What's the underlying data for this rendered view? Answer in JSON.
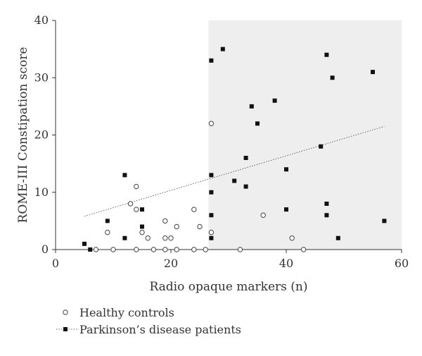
{
  "chart_data": {
    "type": "scatter",
    "title": "",
    "xlabel": "Radio opaque markers (n)",
    "ylabel": "ROME-III Constipation score",
    "xlim": [
      0,
      60
    ],
    "ylim": [
      0,
      40
    ],
    "x_ticks": [
      "0",
      "20",
      "40",
      "60"
    ],
    "y_ticks": [
      "0",
      "10",
      "20",
      "30",
      "40"
    ],
    "grid": false,
    "shaded_region": {
      "x_from": 26.5,
      "x_to": 60,
      "color": "#eeeeee"
    },
    "legend_position": "bottom-left",
    "series": [
      {
        "name": "Healthy controls",
        "marker": "open-circle",
        "points": [
          [
            7,
            0
          ],
          [
            9,
            3
          ],
          [
            10,
            0
          ],
          [
            13,
            8
          ],
          [
            14,
            11
          ],
          [
            14,
            7
          ],
          [
            14,
            0
          ],
          [
            15,
            3
          ],
          [
            16,
            2
          ],
          [
            17,
            0
          ],
          [
            19,
            5
          ],
          [
            19,
            2
          ],
          [
            19,
            0
          ],
          [
            20,
            2
          ],
          [
            21,
            4
          ],
          [
            21,
            0
          ],
          [
            24,
            7
          ],
          [
            24,
            0
          ],
          [
            25,
            4
          ],
          [
            26,
            0
          ],
          [
            27,
            22
          ],
          [
            27,
            3
          ],
          [
            32,
            0
          ],
          [
            36,
            6
          ],
          [
            41,
            2
          ],
          [
            43,
            0
          ]
        ]
      },
      {
        "name": "Parkinson’s disease patients",
        "marker": "filled-square",
        "points": [
          [
            5,
            1
          ],
          [
            6,
            0
          ],
          [
            9,
            5
          ],
          [
            12,
            13
          ],
          [
            12,
            2
          ],
          [
            15,
            7
          ],
          [
            15,
            4
          ],
          [
            27,
            33
          ],
          [
            27,
            13
          ],
          [
            27,
            10
          ],
          [
            27,
            6
          ],
          [
            27,
            2
          ],
          [
            29,
            35
          ],
          [
            31,
            12
          ],
          [
            33,
            16
          ],
          [
            33,
            11
          ],
          [
            34,
            25
          ],
          [
            35,
            22
          ],
          [
            38,
            26
          ],
          [
            40,
            14
          ],
          [
            40,
            7
          ],
          [
            46,
            18
          ],
          [
            47,
            34
          ],
          [
            47,
            8
          ],
          [
            47,
            6
          ],
          [
            48,
            30
          ],
          [
            49,
            2
          ],
          [
            55,
            31
          ],
          [
            57,
            5
          ]
        ]
      }
    ],
    "trendline": {
      "style": "dotted",
      "x": [
        5,
        57
      ],
      "y": [
        5.8,
        21.5
      ]
    }
  }
}
